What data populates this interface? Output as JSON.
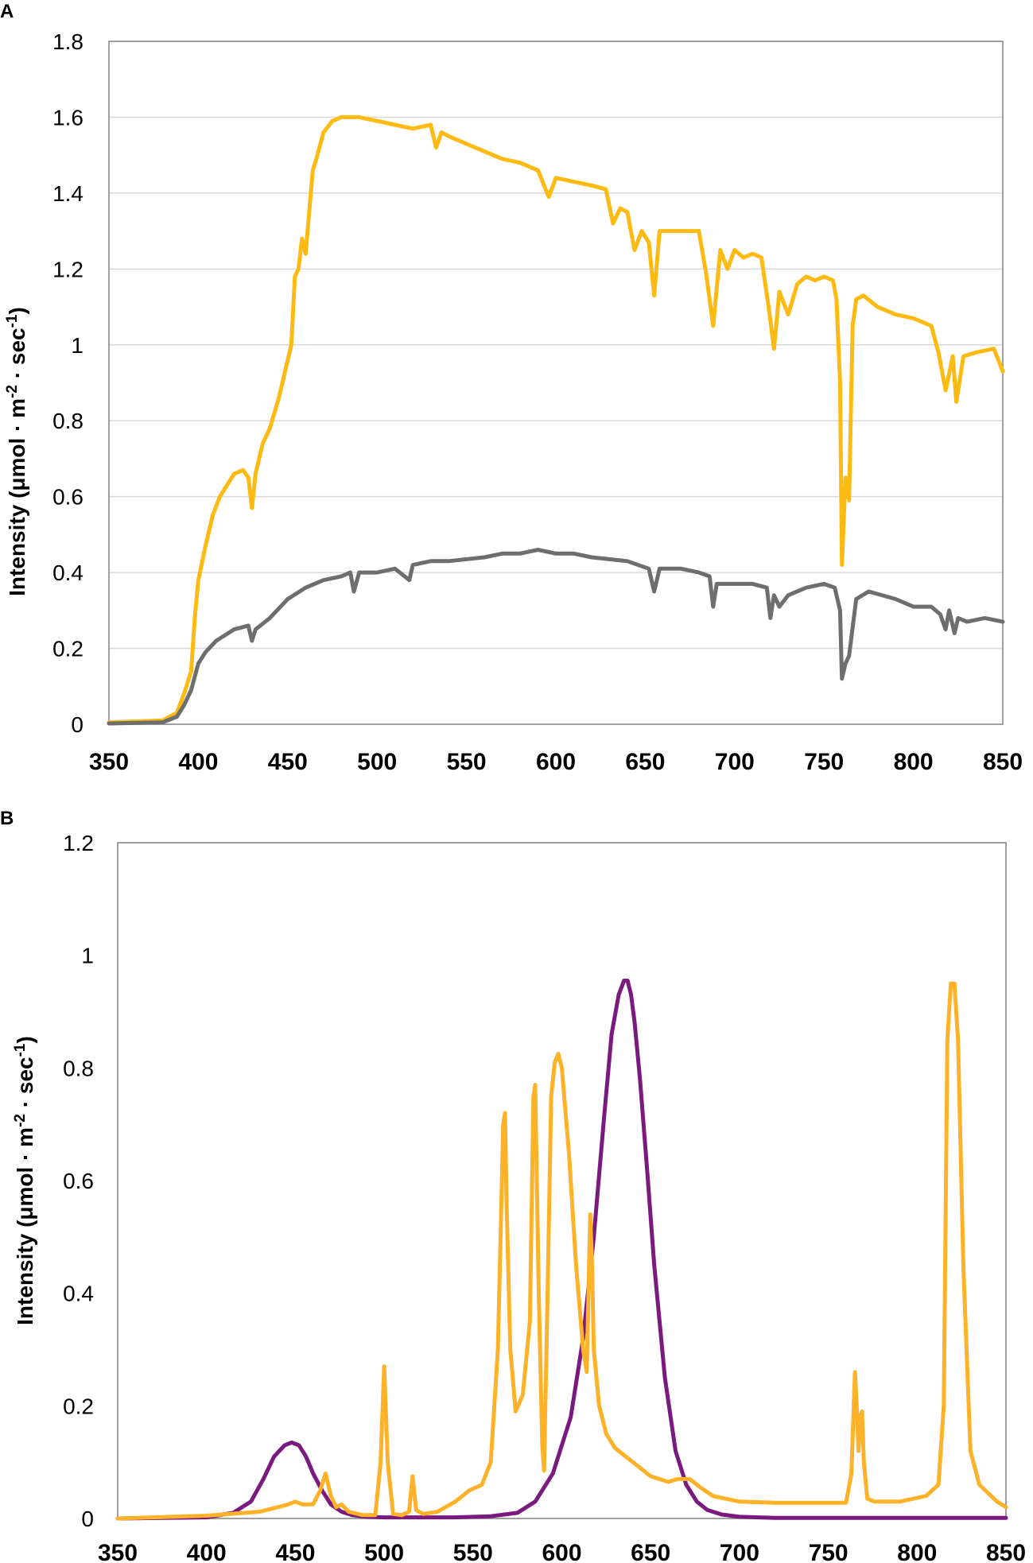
{
  "colors": {
    "yellow": "#FDBA12",
    "gray": "#6E6E6E",
    "purple": "#7B1A7E",
    "orange": "#FDB22A",
    "grid": "#D9D9D9",
    "frame": "#808080"
  },
  "chart_data": [
    {
      "type": "line",
      "panel_label": "A",
      "title": "",
      "xlabel": "",
      "ylabel": "Intensity (μmol · m",
      "ylabel_sup1": "-2",
      "ylabel_mid": " · sec",
      "ylabel_sup2": "-1",
      "ylabel_end": ")",
      "xlim": [
        350,
        850
      ],
      "ylim": [
        0,
        1.8
      ],
      "xticks": [
        350,
        400,
        450,
        500,
        550,
        600,
        650,
        700,
        750,
        800,
        850
      ],
      "yticks": [
        0,
        0.2,
        0.4,
        0.6,
        0.8,
        1,
        1.2,
        1.4,
        1.6,
        1.8
      ],
      "ytick_labels": [
        "0",
        "0.2",
        "0.4",
        "0.6",
        "0.8",
        "1",
        "1.2",
        "1.4",
        "1.6",
        "1.8"
      ],
      "grid": true,
      "series": [
        {
          "color_key": "yellow",
          "x": [
            350,
            380,
            388,
            392,
            396,
            398,
            400,
            404,
            408,
            412,
            416,
            420,
            425,
            428,
            430,
            432,
            436,
            440,
            445,
            450,
            452,
            454,
            456,
            458,
            460,
            464,
            466,
            470,
            475,
            480,
            490,
            500,
            510,
            520,
            530,
            533,
            536,
            540,
            550,
            560,
            570,
            580,
            590,
            596,
            600,
            610,
            620,
            628,
            632,
            636,
            640,
            644,
            648,
            652,
            655,
            658,
            662,
            670,
            680,
            684,
            688,
            692,
            696,
            700,
            705,
            710,
            715,
            719,
            722,
            725,
            730,
            735,
            740,
            745,
            750,
            755,
            757,
            759,
            760,
            762,
            764,
            766,
            768,
            772,
            780,
            790,
            800,
            805,
            810,
            814,
            818,
            822,
            824,
            828,
            835,
            845,
            850
          ],
          "y": [
            0.005,
            0.01,
            0.03,
            0.08,
            0.14,
            0.28,
            0.38,
            0.47,
            0.55,
            0.6,
            0.63,
            0.66,
            0.67,
            0.65,
            0.57,
            0.66,
            0.74,
            0.78,
            0.86,
            0.96,
            1.0,
            1.18,
            1.2,
            1.28,
            1.24,
            1.46,
            1.49,
            1.56,
            1.59,
            1.6,
            1.6,
            1.59,
            1.58,
            1.57,
            1.58,
            1.52,
            1.56,
            1.55,
            1.53,
            1.51,
            1.49,
            1.48,
            1.46,
            1.39,
            1.44,
            1.43,
            1.42,
            1.41,
            1.32,
            1.36,
            1.35,
            1.25,
            1.3,
            1.27,
            1.13,
            1.3,
            1.3,
            1.3,
            1.3,
            1.19,
            1.05,
            1.25,
            1.2,
            1.25,
            1.23,
            1.24,
            1.23,
            1.1,
            0.99,
            1.14,
            1.08,
            1.16,
            1.18,
            1.17,
            1.18,
            1.17,
            1.12,
            0.9,
            0.42,
            0.65,
            0.59,
            1.05,
            1.12,
            1.13,
            1.1,
            1.08,
            1.07,
            1.06,
            1.05,
            0.98,
            0.88,
            0.97,
            0.85,
            0.97,
            0.98,
            0.99,
            0.93
          ]
        },
        {
          "color_key": "gray",
          "x": [
            350,
            380,
            388,
            392,
            396,
            400,
            404,
            410,
            420,
            428,
            430,
            432,
            440,
            450,
            460,
            470,
            480,
            485,
            487,
            490,
            500,
            510,
            518,
            520,
            530,
            540,
            560,
            570,
            580,
            590,
            600,
            610,
            620,
            640,
            652,
            655,
            658,
            670,
            680,
            686,
            688,
            690,
            700,
            710,
            718,
            720,
            722,
            725,
            730,
            740,
            750,
            756,
            759,
            760,
            762,
            764,
            768,
            775,
            790,
            800,
            810,
            815,
            818,
            820,
            823,
            825,
            830,
            840,
            850
          ],
          "y": [
            0.002,
            0.005,
            0.02,
            0.05,
            0.09,
            0.16,
            0.19,
            0.22,
            0.25,
            0.26,
            0.22,
            0.25,
            0.28,
            0.33,
            0.36,
            0.38,
            0.39,
            0.4,
            0.35,
            0.4,
            0.4,
            0.41,
            0.38,
            0.42,
            0.43,
            0.43,
            0.44,
            0.45,
            0.45,
            0.46,
            0.45,
            0.45,
            0.44,
            0.43,
            0.41,
            0.35,
            0.41,
            0.41,
            0.4,
            0.39,
            0.31,
            0.37,
            0.37,
            0.37,
            0.36,
            0.28,
            0.34,
            0.31,
            0.34,
            0.36,
            0.37,
            0.36,
            0.3,
            0.12,
            0.16,
            0.18,
            0.33,
            0.35,
            0.33,
            0.31,
            0.31,
            0.29,
            0.25,
            0.3,
            0.24,
            0.28,
            0.27,
            0.28,
            0.27
          ]
        }
      ]
    },
    {
      "type": "line",
      "panel_label": "B",
      "title": "",
      "xlabel": "",
      "ylabel": "Intensity (μmol · m",
      "ylabel_sup1": "-2",
      "ylabel_mid": " · sec",
      "ylabel_sup2": "-1",
      "ylabel_end": ")",
      "xlim": [
        350,
        850
      ],
      "ylim": [
        0,
        1.2
      ],
      "xticks": [
        350,
        400,
        450,
        500,
        550,
        600,
        650,
        700,
        750,
        800,
        850
      ],
      "yticks": [
        0,
        0.2,
        0.4,
        0.6,
        0.8,
        1,
        1.2
      ],
      "ytick_labels": [
        "0",
        "0.2",
        "0.4",
        "0.6",
        "0.8",
        "1",
        "1.2"
      ],
      "grid": false,
      "series": [
        {
          "color_key": "purple",
          "x": [
            350,
            400,
            415,
            425,
            432,
            438,
            444,
            448,
            452,
            456,
            460,
            465,
            470,
            476,
            482,
            490,
            500,
            540,
            560,
            575,
            585,
            595,
            605,
            612,
            618,
            624,
            628,
            632,
            635,
            637,
            639,
            641,
            644,
            648,
            652,
            658,
            664,
            670,
            676,
            682,
            690,
            700,
            720,
            850
          ],
          "y": [
            0,
            0.002,
            0.01,
            0.03,
            0.07,
            0.11,
            0.13,
            0.135,
            0.13,
            0.11,
            0.08,
            0.05,
            0.025,
            0.012,
            0.006,
            0.003,
            0.002,
            0.002,
            0.004,
            0.01,
            0.03,
            0.08,
            0.18,
            0.32,
            0.5,
            0.72,
            0.86,
            0.93,
            0.955,
            0.955,
            0.93,
            0.88,
            0.78,
            0.62,
            0.45,
            0.25,
            0.12,
            0.06,
            0.03,
            0.015,
            0.007,
            0.003,
            0.001,
            0.001
          ]
        },
        {
          "color_key": "orange",
          "x": [
            350,
            400,
            430,
            440,
            446,
            450,
            454,
            460,
            464,
            467,
            470,
            473,
            476,
            480,
            488,
            495,
            498,
            500,
            502,
            505,
            510,
            514,
            516,
            518,
            522,
            530,
            540,
            548,
            555,
            560,
            564,
            567,
            568,
            569,
            571,
            574,
            578,
            582,
            584,
            585,
            587,
            589,
            590,
            592,
            594,
            596,
            598,
            600,
            604,
            608,
            612,
            614,
            615,
            616,
            617,
            618,
            621,
            625,
            630,
            640,
            650,
            660,
            665,
            672,
            678,
            685,
            700,
            720,
            740,
            760,
            763,
            765,
            766,
            767,
            768,
            769,
            770,
            772,
            776,
            790,
            805,
            812,
            815,
            817,
            819,
            821,
            823,
            826,
            830,
            835,
            845,
            850
          ],
          "y": [
            0,
            0.005,
            0.012,
            0.02,
            0.025,
            0.03,
            0.025,
            0.025,
            0.05,
            0.08,
            0.04,
            0.02,
            0.025,
            0.012,
            0.006,
            0.006,
            0.1,
            0.27,
            0.1,
            0.008,
            0.006,
            0.012,
            0.075,
            0.015,
            0.008,
            0.012,
            0.03,
            0.05,
            0.06,
            0.1,
            0.3,
            0.7,
            0.72,
            0.55,
            0.3,
            0.19,
            0.22,
            0.35,
            0.75,
            0.77,
            0.4,
            0.13,
            0.085,
            0.4,
            0.75,
            0.81,
            0.825,
            0.8,
            0.65,
            0.45,
            0.3,
            0.26,
            0.4,
            0.54,
            0.45,
            0.3,
            0.2,
            0.15,
            0.125,
            0.1,
            0.075,
            0.065,
            0.07,
            0.07,
            0.055,
            0.04,
            0.03,
            0.028,
            0.028,
            0.028,
            0.08,
            0.26,
            0.2,
            0.12,
            0.18,
            0.19,
            0.1,
            0.035,
            0.03,
            0.03,
            0.04,
            0.06,
            0.2,
            0.85,
            0.95,
            0.95,
            0.85,
            0.45,
            0.12,
            0.06,
            0.03,
            0.02
          ]
        }
      ]
    }
  ]
}
